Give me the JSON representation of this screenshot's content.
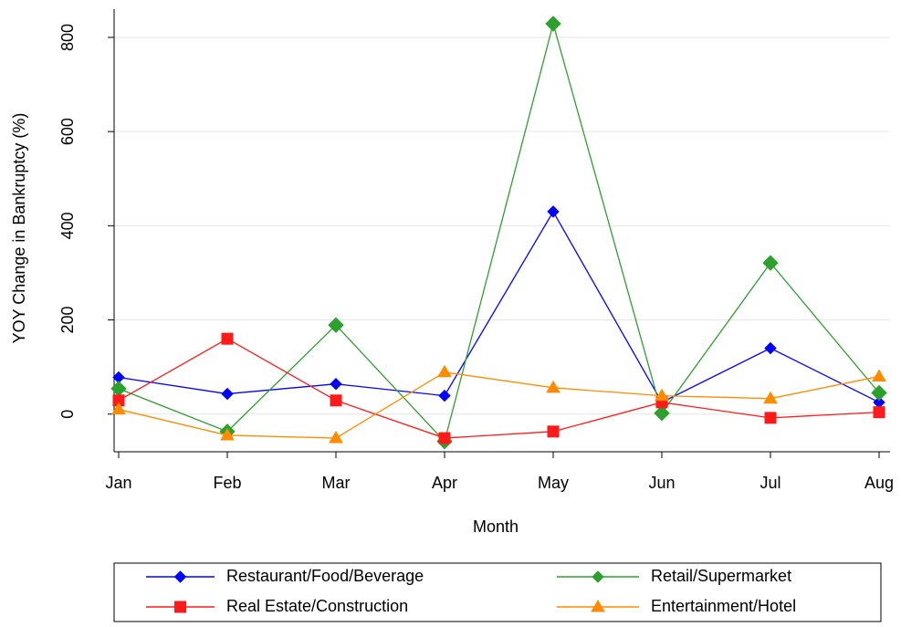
{
  "chart_data": {
    "type": "line",
    "x_label": "Month",
    "y_label": "YOY Change in Bankruptcy (%)",
    "categories": [
      "Jan",
      "Feb",
      "Mar",
      "Apr",
      "May",
      "Jun",
      "Jul",
      "Aug"
    ],
    "series": [
      {
        "name": "Restaurant/Food/Beverage",
        "color": "#0000ff",
        "marker": "diamond",
        "values": [
          78,
          43,
          64,
          39,
          430,
          25,
          140,
          25
        ]
      },
      {
        "name": "Retail/Supermarket",
        "color": "#2ca02c",
        "marker": "diamond",
        "values": [
          54,
          -37,
          189,
          -58,
          829,
          2,
          321,
          45
        ]
      },
      {
        "name": "Real Estate/Construction",
        "color": "#ff1a1a",
        "marker": "square",
        "values": [
          29,
          160,
          29,
          -51,
          -37,
          25,
          -8,
          4
        ]
      },
      {
        "name": "Entertainment/Hotel",
        "color": "#ff8c00",
        "marker": "triangle",
        "values": [
          10,
          -45,
          -51,
          89,
          56,
          39,
          33,
          80
        ]
      }
    ],
    "ylim": [
      -80,
      860
    ],
    "yticks": [
      0,
      200,
      400,
      600,
      800
    ],
    "grid": true,
    "legend": "bottom"
  }
}
